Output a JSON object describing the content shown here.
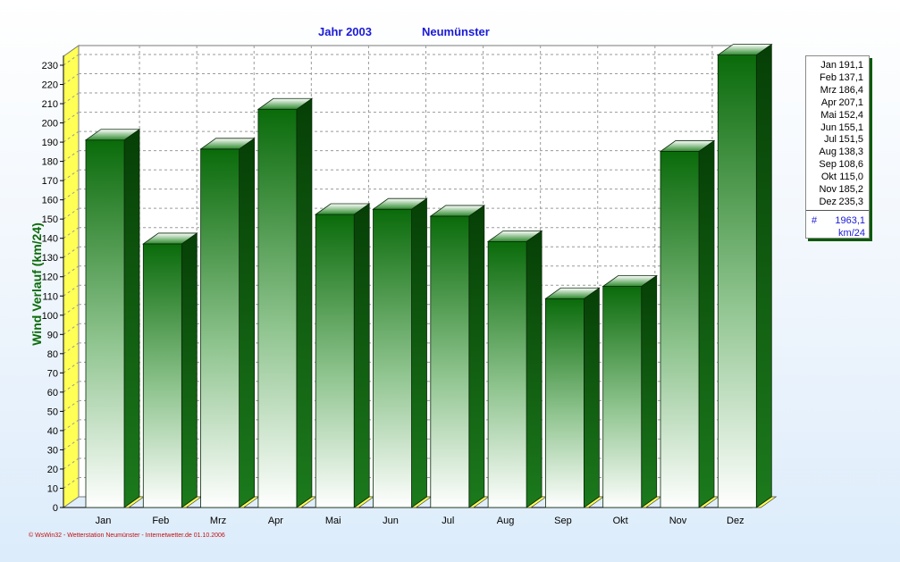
{
  "header": {
    "year_label": "Jahr  2003",
    "station": "Neumünster"
  },
  "chart_data": {
    "type": "bar",
    "title": "Jahr  2003     Neumünster",
    "ylabel": "Wind Verlauf  (km/24)",
    "xlabel": "",
    "categories": [
      "Jan",
      "Feb",
      "Mrz",
      "Apr",
      "Mai",
      "Jun",
      "Jul",
      "Aug",
      "Sep",
      "Okt",
      "Nov",
      "Dez"
    ],
    "values": [
      191.1,
      137.1,
      186.4,
      207.1,
      152.4,
      155.1,
      151.5,
      138.3,
      108.6,
      115.0,
      185.2,
      235.3
    ],
    "ylim": [
      0,
      235
    ],
    "ytick_step": 10,
    "grid": true,
    "legend_position": "right",
    "bar_color": "#0a6b0a",
    "bar_gradient_light": "#ffffff",
    "floor_color": "#ffff66"
  },
  "legend": {
    "rows": [
      {
        "month": "Jan",
        "value": "191,1"
      },
      {
        "month": "Feb",
        "value": "137,1"
      },
      {
        "month": "Mrz",
        "value": "186,4"
      },
      {
        "month": "Apr",
        "value": "207,1"
      },
      {
        "month": "Mai",
        "value": "152,4"
      },
      {
        "month": "Jun",
        "value": "155,1"
      },
      {
        "month": "Jul",
        "value": "151,5"
      },
      {
        "month": "Aug",
        "value": "138,3"
      },
      {
        "month": "Sep",
        "value": "108,6"
      },
      {
        "month": "Okt",
        "value": "115,0"
      },
      {
        "month": "Nov",
        "value": "185,2"
      },
      {
        "month": "Dez",
        "value": "235,3"
      }
    ],
    "total_symbol": "#",
    "total_value": "1963,1",
    "total_unit": "km/24"
  },
  "footer": {
    "text": "© WsWin32 - Wetterstation Neumünster - Internetwetter.de  01.10.2006"
  }
}
